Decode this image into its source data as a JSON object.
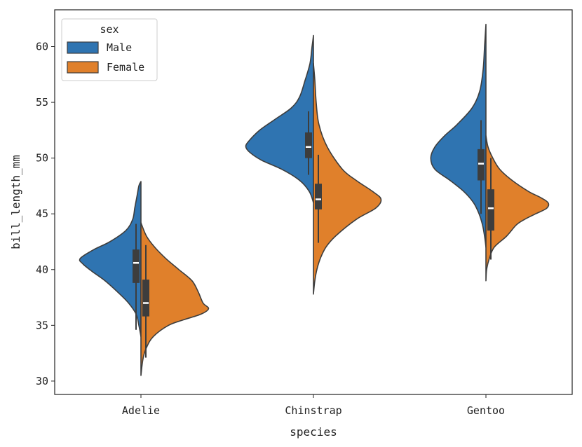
{
  "chart_data": {
    "type": "violin",
    "split": true,
    "xlabel": "species",
    "ylabel": "bill_length_mm",
    "ylim": [
      28.8,
      63.3
    ],
    "yticks": [
      30,
      35,
      40,
      45,
      50,
      55,
      60
    ],
    "categories": [
      "Adelie",
      "Chinstrap",
      "Gentoo"
    ],
    "legend": {
      "title": "sex",
      "position": "top-left"
    },
    "series": [
      {
        "name": "Male",
        "color": "#2f74b1",
        "groups": [
          {
            "category": "Adelie",
            "min": 34.6,
            "q1": 38.8,
            "median": 40.6,
            "q3": 41.8,
            "max": 44.1,
            "density": [
              [
                47.9,
                0
              ],
              [
                47.5,
                0.03
              ],
              [
                46.5,
                0.06
              ],
              [
                45.5,
                0.09
              ],
              [
                44.5,
                0.12
              ],
              [
                43.5,
                0.22
              ],
              [
                42.5,
                0.45
              ],
              [
                41.8,
                0.68
              ],
              [
                41.0,
                0.88
              ],
              [
                40.5,
                0.84
              ],
              [
                39.8,
                0.7
              ],
              [
                39.0,
                0.52
              ],
              [
                38.0,
                0.34
              ],
              [
                37.0,
                0.18
              ],
              [
                36.0,
                0.07
              ],
              [
                35.0,
                0.03
              ],
              [
                34.0,
                0
              ]
            ]
          },
          {
            "category": "Chinstrap",
            "min": 48.5,
            "q1": 50.0,
            "median": 51.0,
            "q3": 52.3,
            "max": 54.2,
            "density": [
              [
                61.0,
                0
              ],
              [
                60.0,
                0.02
              ],
              [
                58.5,
                0.05
              ],
              [
                57.0,
                0.12
              ],
              [
                55.5,
                0.2
              ],
              [
                54.5,
                0.32
              ],
              [
                53.5,
                0.55
              ],
              [
                52.5,
                0.78
              ],
              [
                51.5,
                0.94
              ],
              [
                51.0,
                0.98
              ],
              [
                50.5,
                0.92
              ],
              [
                49.8,
                0.75
              ],
              [
                49.0,
                0.46
              ],
              [
                48.0,
                0.2
              ],
              [
                47.0,
                0.06
              ],
              [
                46.0,
                0
              ]
            ]
          },
          {
            "category": "Gentoo",
            "min": 45.0,
            "q1": 48.0,
            "median": 49.5,
            "q3": 50.8,
            "max": 53.4,
            "density": [
              [
                62.0,
                0
              ],
              [
                60.0,
                0.02
              ],
              [
                58.0,
                0.04
              ],
              [
                56.0,
                0.09
              ],
              [
                54.5,
                0.2
              ],
              [
                53.0,
                0.42
              ],
              [
                52.0,
                0.6
              ],
              [
                51.0,
                0.74
              ],
              [
                50.0,
                0.8
              ],
              [
                49.0,
                0.74
              ],
              [
                48.0,
                0.52
              ],
              [
                47.0,
                0.32
              ],
              [
                46.0,
                0.18
              ],
              [
                45.0,
                0.1
              ],
              [
                44.0,
                0.05
              ],
              [
                43.0,
                0.02
              ],
              [
                42.0,
                0
              ]
            ]
          }
        ]
      },
      {
        "name": "Female",
        "color": "#e0802b",
        "groups": [
          {
            "category": "Adelie",
            "min": 32.1,
            "q1": 35.8,
            "median": 37.0,
            "q3": 39.1,
            "max": 42.2,
            "density": [
              [
                44.2,
                0
              ],
              [
                43.0,
                0.08
              ],
              [
                42.0,
                0.2
              ],
              [
                41.0,
                0.36
              ],
              [
                40.0,
                0.55
              ],
              [
                39.0,
                0.74
              ],
              [
                38.0,
                0.83
              ],
              [
                37.0,
                0.9
              ],
              [
                36.5,
                0.98
              ],
              [
                36.0,
                0.87
              ],
              [
                35.5,
                0.62
              ],
              [
                35.0,
                0.4
              ],
              [
                34.0,
                0.18
              ],
              [
                33.0,
                0.08
              ],
              [
                32.0,
                0.03
              ],
              [
                30.5,
                0
              ]
            ]
          },
          {
            "category": "Chinstrap",
            "min": 42.4,
            "q1": 45.4,
            "median": 46.3,
            "q3": 47.7,
            "max": 50.3,
            "density": [
              [
                58.5,
                0
              ],
              [
                57.0,
                0.02
              ],
              [
                55.0,
                0.04
              ],
              [
                53.0,
                0.08
              ],
              [
                51.0,
                0.2
              ],
              [
                49.0,
                0.42
              ],
              [
                48.0,
                0.62
              ],
              [
                47.0,
                0.86
              ],
              [
                46.3,
                0.98
              ],
              [
                45.5,
                0.9
              ],
              [
                44.5,
                0.62
              ],
              [
                43.0,
                0.32
              ],
              [
                42.0,
                0.18
              ],
              [
                41.0,
                0.1
              ],
              [
                40.0,
                0.05
              ],
              [
                39.0,
                0.02
              ],
              [
                37.8,
                0
              ]
            ]
          },
          {
            "category": "Gentoo",
            "min": 40.9,
            "q1": 43.5,
            "median": 45.5,
            "q3": 47.2,
            "max": 50.0,
            "density": [
              [
                52.0,
                0
              ],
              [
                51.0,
                0.03
              ],
              [
                50.0,
                0.1
              ],
              [
                49.0,
                0.2
              ],
              [
                48.0,
                0.38
              ],
              [
                47.0,
                0.62
              ],
              [
                46.5,
                0.78
              ],
              [
                46.0,
                0.9
              ],
              [
                45.5,
                0.88
              ],
              [
                45.0,
                0.72
              ],
              [
                44.5,
                0.56
              ],
              [
                44.0,
                0.44
              ],
              [
                43.0,
                0.3
              ],
              [
                42.0,
                0.12
              ],
              [
                41.0,
                0.05
              ],
              [
                40.0,
                0.01
              ],
              [
                39.0,
                0
              ]
            ]
          }
        ]
      }
    ]
  }
}
